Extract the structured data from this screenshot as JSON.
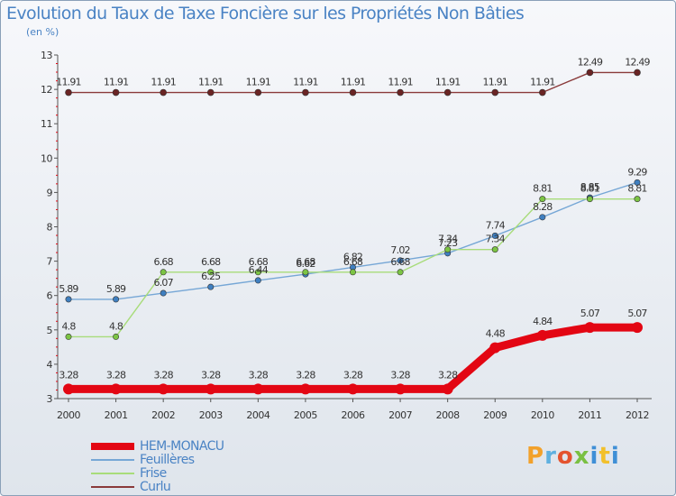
{
  "title": "Evolution du Taux de Taxe Foncière sur les Propriétés Non Bâties",
  "subtitle": "(en %)",
  "logo": "Proxiti",
  "chart_data": {
    "type": "line",
    "title": "Evolution du Taux de Taxe Foncière sur les Propriétés Non Bâties",
    "ylabel": "(en %)",
    "xlabel": "",
    "ylim": [
      3,
      13
    ],
    "yticks": [
      3,
      4,
      5,
      6,
      7,
      8,
      9,
      10,
      11,
      12,
      13
    ],
    "categories": [
      "2000",
      "2001",
      "2002",
      "2003",
      "2004",
      "2005",
      "2006",
      "2007",
      "2008",
      "2009",
      "2010",
      "2011",
      "2012"
    ],
    "grid": false,
    "legend": "bottom-left",
    "series": [
      {
        "name": "HEM-MONACU",
        "color": "#e30613",
        "marker_color": "#e30613",
        "values": [
          3.28,
          3.28,
          3.28,
          3.28,
          3.28,
          3.28,
          3.28,
          3.28,
          3.28,
          4.48,
          4.84,
          5.07,
          5.07
        ]
      },
      {
        "name": "Feuillères",
        "color": "#76a7d6",
        "marker_color": "#3f7fc0",
        "values": [
          5.89,
          5.89,
          6.07,
          6.25,
          6.44,
          6.62,
          6.82,
          7.02,
          7.23,
          7.74,
          8.28,
          8.85,
          9.29
        ]
      },
      {
        "name": "Frise",
        "color": "#a8dc7a",
        "marker_color": "#7cc444",
        "values": [
          4.8,
          4.8,
          6.68,
          6.68,
          6.68,
          6.68,
          6.68,
          6.68,
          7.34,
          7.34,
          8.81,
          8.81,
          8.81
        ]
      },
      {
        "name": "Curlu",
        "color": "#8a3a3a",
        "marker_color": "#6a2424",
        "values": [
          11.91,
          11.91,
          11.91,
          11.91,
          11.91,
          11.91,
          11.91,
          11.91,
          11.91,
          11.91,
          11.91,
          12.49,
          12.49
        ]
      }
    ]
  }
}
